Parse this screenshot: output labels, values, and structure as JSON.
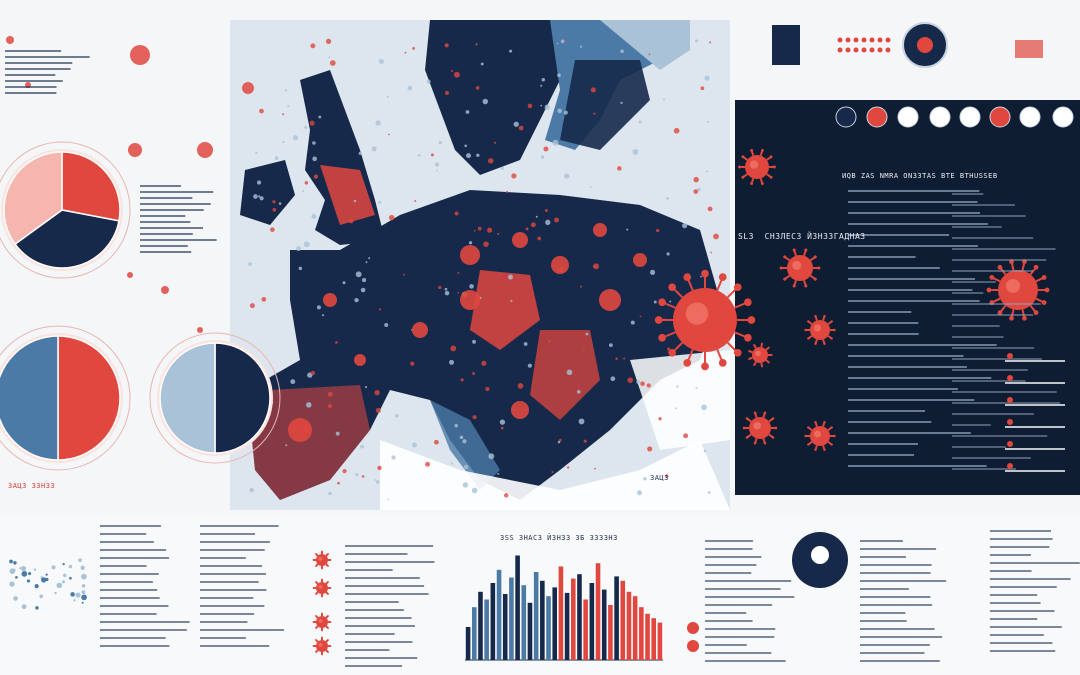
{
  "palette": {
    "navy": "#16294a",
    "dark_panel": "#0f1d33",
    "red": "#e0473f",
    "pink": "#f4b6ae",
    "light_blue": "#a9c2d8",
    "mid_blue": "#4b7aa6",
    "background": "#f4f6f8"
  },
  "panel_labels": {
    "dark_panel_heading": "ИQВ ZAS NМRА  ОN33TAS BТЕ BТНUSSEB",
    "virus_caption": "SLЗ​    СНЗЛЕСЗ   ЙЗНЗЗГАДНАЗ",
    "map_tag": "ЗАЦЗ",
    "bar_chart_caption": "ЗSS ЗНАСЗ ЙЗНЗЗ ЗБ ЗЗЗЗНЗ",
    "map_caption_bottom": "ЗАЦЗ  ЗЗНЗЗ"
  },
  "pie_charts": [
    {
      "name": "pie-upper-left",
      "values": [
        0.28,
        0.37,
        0.35
      ],
      "colors": [
        "#e0473f",
        "#16294a",
        "#f4b6ae"
      ]
    },
    {
      "name": "pie-lower-left",
      "values": [
        0.5,
        0.5
      ],
      "colors": [
        "#e0473f",
        "#4b7aa6"
      ]
    },
    {
      "name": "pie-middle-left",
      "values": [
        0.5,
        0.5
      ],
      "colors": [
        "#16294a",
        "#a9c2d8"
      ]
    }
  ],
  "chart_data": {
    "type": "bar",
    "title": "",
    "xlabel": "",
    "ylabel": "",
    "ylim": [
      0,
      100
    ],
    "values": [
      30,
      48,
      62,
      55,
      70,
      82,
      60,
      75,
      95,
      68,
      52,
      80,
      72,
      58,
      66,
      85,
      61,
      74,
      78,
      55,
      70,
      88,
      64,
      50,
      76,
      72,
      62,
      58,
      48,
      42,
      38,
      34
    ],
    "colors": [
      "navy",
      "mid_blue",
      "navy",
      "mid_blue",
      "navy",
      "mid_blue",
      "navy",
      "mid_blue",
      "navy",
      "mid_blue",
      "navy",
      "mid_blue",
      "navy",
      "mid_blue",
      "navy",
      "red",
      "navy",
      "red",
      "navy",
      "red",
      "navy",
      "red",
      "navy",
      "red",
      "navy",
      "red",
      "red",
      "red",
      "red",
      "red",
      "red",
      "red"
    ]
  }
}
